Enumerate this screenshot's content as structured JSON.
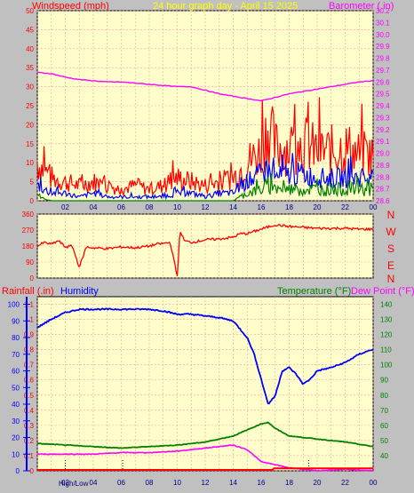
{
  "header": {
    "left_label": "Windspeed (mph)",
    "center_label": "24 hour graph day - April 15 2025",
    "right_label": "Barometer (.in)"
  },
  "bottom_header": {
    "left_label": "Rainfall (.in)",
    "left_label2": "Humidity",
    "right_label": "Temperature (°F)",
    "right_label2": "Dew Point (°F)"
  },
  "footer": {
    "left_text": "High/Low"
  },
  "colors": {
    "panel_bg": "#ffffcc",
    "frame_bg": "#c0c0c0",
    "grid": "#ff9999",
    "windspeed": "#ff0000",
    "gust": "#ff0000",
    "avg_speed": "#0000ff",
    "low_speed": "#008000",
    "barometer": "#ff00ff",
    "direction": "#ff0000",
    "humidity": "#0000ff",
    "temperature": "#008000",
    "dewpoint": "#ff00ff",
    "rainfall": "#ff0000",
    "dir_letters": "#ff0000",
    "header_yellow": "#ffff00"
  },
  "chart_data": [
    {
      "type": "line",
      "title": "24 hour graph day - April 15 2025",
      "xlabel": "",
      "ylabel": "Windspeed (mph)",
      "y2label": "Barometer (.in)",
      "x_ticks": [
        "02",
        "04",
        "06",
        "08",
        "10",
        "12",
        "14",
        "16",
        "18",
        "20",
        "22",
        "00"
      ],
      "y_ticks": [
        0,
        5,
        10,
        15,
        20,
        25,
        30,
        35,
        40,
        45,
        50
      ],
      "ylim": [
        0,
        50
      ],
      "y2_ticks": [
        28.6,
        28.7,
        28.8,
        28.9,
        29.0,
        29.1,
        29.2,
        29.3,
        29.4,
        29.5,
        29.6,
        29.7,
        29.8,
        29.9,
        30.0,
        30.1,
        30.2
      ],
      "y2lim": [
        28.6,
        30.2
      ],
      "grid": true,
      "series": [
        {
          "name": "Barometer (.in)",
          "axis": "right",
          "x": [
            0,
            1,
            2,
            3,
            4,
            5,
            6,
            7,
            8,
            9,
            10,
            11,
            12,
            13,
            14,
            15,
            15.6,
            16,
            17,
            18,
            19,
            20,
            21,
            22,
            23,
            24
          ],
          "values": [
            29.68,
            29.67,
            29.64,
            29.62,
            29.61,
            29.6,
            29.6,
            29.59,
            29.58,
            29.57,
            29.56,
            29.56,
            29.53,
            29.5,
            29.48,
            29.46,
            29.45,
            29.44,
            29.47,
            29.5,
            29.52,
            29.54,
            29.56,
            29.58,
            29.6,
            29.61
          ]
        },
        {
          "name": "Gust",
          "axis": "left",
          "x": [
            0,
            1,
            2,
            3,
            4,
            5,
            6,
            7,
            8,
            9,
            10,
            11,
            12,
            13,
            14,
            15,
            16,
            16.5,
            17,
            18,
            19,
            20,
            21,
            22,
            23,
            24
          ],
          "values": [
            10,
            6,
            5,
            4,
            5,
            4,
            3,
            4,
            3,
            4,
            6,
            5,
            4,
            5,
            6,
            10,
            13,
            20,
            14,
            14,
            15,
            13,
            13,
            14,
            12,
            12
          ]
        },
        {
          "name": "Average speed",
          "axis": "left",
          "x": [
            0,
            1,
            2,
            3,
            4,
            5,
            6,
            7,
            8,
            9,
            10,
            11,
            12,
            13,
            14,
            15,
            16,
            16.5,
            17,
            18,
            19,
            20,
            21,
            22,
            23,
            24
          ],
          "values": [
            4,
            2,
            2,
            1,
            2,
            1,
            1,
            1,
            1,
            1,
            2,
            2,
            1,
            2,
            2,
            5,
            7,
            8,
            6,
            7,
            7,
            6,
            6,
            6,
            6,
            6
          ]
        },
        {
          "name": "Low speed",
          "axis": "left",
          "x": [
            0,
            1,
            2,
            3,
            4,
            5,
            6,
            7,
            8,
            9,
            10,
            11,
            12,
            13,
            14,
            15,
            16,
            16.5,
            17,
            18,
            19,
            20,
            21,
            22,
            23,
            24
          ],
          "values": [
            1,
            0,
            0,
            0,
            0,
            0,
            0,
            0,
            0,
            0,
            0,
            0,
            0,
            0,
            0,
            2,
            3,
            4,
            3,
            3,
            3,
            3,
            3,
            3,
            3,
            3
          ]
        }
      ]
    },
    {
      "type": "line",
      "ylabel": "",
      "y_ticks": [
        0,
        90,
        180,
        270,
        360
      ],
      "ylim": [
        0,
        360
      ],
      "direction_labels": [
        "N",
        "W",
        "S",
        "E",
        "N"
      ],
      "grid": true,
      "series": [
        {
          "name": "Wind direction",
          "x": [
            0,
            0.5,
            1,
            1.5,
            2,
            2.5,
            3,
            3.5,
            4,
            5,
            6,
            7,
            8,
            8.5,
            9,
            9.5,
            10,
            10.2,
            10.5,
            11,
            12,
            13,
            14,
            14.5,
            15,
            16,
            17,
            18,
            19,
            20,
            21,
            22,
            23,
            24
          ],
          "values": [
            180,
            200,
            190,
            210,
            175,
            180,
            60,
            175,
            170,
            165,
            175,
            170,
            180,
            190,
            195,
            200,
            10,
            270,
            210,
            200,
            215,
            220,
            230,
            250,
            250,
            275,
            300,
            290,
            285,
            280,
            280,
            280,
            275,
            275
          ]
        }
      ]
    },
    {
      "type": "line",
      "ylabel": "Rainfall (.in)",
      "y2label": "Temperature (°F)",
      "x_ticks": [
        "02",
        "04",
        "06",
        "08",
        "10",
        "12",
        "14",
        "16",
        "18",
        "20",
        "22",
        "00"
      ],
      "y_ticks": [
        0,
        0.1,
        0.2,
        0.3,
        0.4,
        0.5,
        0.6,
        0.7,
        0.8,
        0.9,
        1,
        1.1
      ],
      "humidity_ticks": [
        0,
        10,
        20,
        30,
        40,
        50,
        60,
        70,
        80,
        90,
        100
      ],
      "ylim": [
        0,
        1.15
      ],
      "y2_ticks": [
        40,
        50,
        60,
        70,
        80,
        90,
        100,
        110,
        120,
        130,
        140
      ],
      "y2lim": [
        30,
        145
      ],
      "grid": true,
      "series": [
        {
          "name": "Humidity",
          "axis": "humidity",
          "x": [
            0,
            1,
            2,
            3,
            4,
            6,
            8,
            9,
            10,
            11,
            12,
            13,
            14,
            15,
            15.5,
            16,
            16.5,
            17,
            17.5,
            18,
            18.5,
            19,
            19.5,
            20,
            21,
            22,
            23,
            24
          ],
          "values": [
            86,
            91,
            95,
            97,
            97,
            97,
            97,
            96,
            94,
            94,
            93,
            92,
            90,
            80,
            70,
            55,
            40,
            45,
            60,
            62,
            58,
            52,
            55,
            60,
            62,
            65,
            70,
            73
          ]
        },
        {
          "name": "Temperature (°F)",
          "axis": "right",
          "x": [
            0,
            2,
            4,
            6,
            8,
            10,
            12,
            14,
            15,
            16,
            16.5,
            17,
            18,
            20,
            22,
            24
          ],
          "values": [
            48,
            47,
            46,
            45,
            46,
            47,
            49,
            53,
            57,
            61,
            62,
            58,
            53,
            51,
            49,
            46
          ]
        },
        {
          "name": "Dew Point (°F)",
          "axis": "right",
          "x": [
            0,
            2,
            4,
            6,
            8,
            10,
            12,
            14,
            15,
            16,
            17,
            18,
            20,
            22,
            24
          ],
          "values": [
            41,
            41,
            41,
            42,
            42,
            43,
            45,
            47,
            44,
            36,
            34,
            32,
            30,
            31,
            30
          ]
        },
        {
          "name": "Rainfall (.in)",
          "axis": "left",
          "x": [
            0,
            16.8,
            16.9,
            24
          ],
          "values": [
            0,
            0,
            0.01,
            0.01
          ]
        }
      ]
    }
  ]
}
